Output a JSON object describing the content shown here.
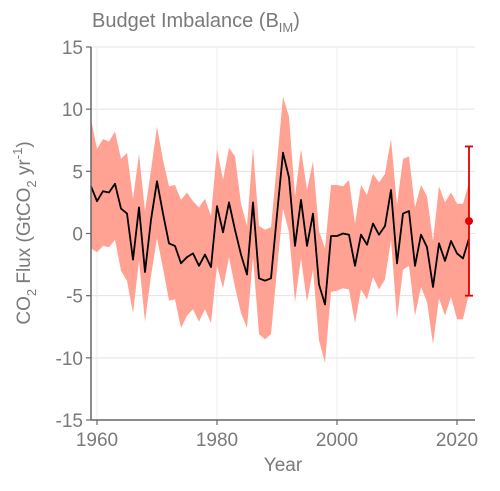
{
  "chart_data": {
    "type": "line",
    "title": "Budget Imbalance (B",
    "title_subscript": "IM",
    "title_close": ")",
    "ylabel_parts": [
      "CO",
      "2",
      " Flux (GtCO",
      "2",
      " yr",
      "-1",
      ")"
    ],
    "xlabel": "Year",
    "xlim": [
      1959,
      2023
    ],
    "ylim": [
      -15,
      15
    ],
    "xticks": [
      1960,
      1980,
      2000,
      2020
    ],
    "yticks": [
      15,
      10,
      5,
      0,
      -5,
      -10,
      -15
    ],
    "grid": true,
    "x": [
      1959,
      1960,
      1961,
      1962,
      1963,
      1964,
      1965,
      1966,
      1967,
      1968,
      1969,
      1970,
      1971,
      1972,
      1973,
      1974,
      1975,
      1976,
      1977,
      1978,
      1979,
      1980,
      1981,
      1982,
      1983,
      1984,
      1985,
      1986,
      1987,
      1988,
      1989,
      1990,
      1991,
      1992,
      1993,
      1994,
      1995,
      1996,
      1997,
      1998,
      1999,
      2000,
      2001,
      2002,
      2003,
      2004,
      2005,
      2006,
      2007,
      2008,
      2009,
      2010,
      2011,
      2012,
      2013,
      2014,
      2015,
      2016,
      2017,
      2018,
      2019,
      2020,
      2021,
      2022
    ],
    "series": [
      {
        "name": "Budget imbalance",
        "color": "#000000",
        "values": [
          3.8,
          2.6,
          3.4,
          3.3,
          4.0,
          2.0,
          1.6,
          -2.1,
          2.1,
          -3.1,
          1.1,
          4.2,
          1.6,
          -0.8,
          -1.0,
          -2.4,
          -1.9,
          -1.6,
          -2.6,
          -1.7,
          -2.7,
          2.2,
          0.1,
          2.5,
          0.3,
          -1.7,
          -3.3,
          2.5,
          -3.6,
          -3.8,
          -3.6,
          1.5,
          6.5,
          4.5,
          -1.0,
          2.7,
          -1.0,
          1.6,
          -4.1,
          -5.7,
          -0.2,
          -0.2,
          0.0,
          -0.1,
          -2.6,
          -0.1,
          -0.9,
          0.8,
          -0.1,
          0.6,
          3.5,
          -2.4,
          1.6,
          1.8,
          -2.6,
          -0.1,
          -1.1,
          -4.3,
          -0.8,
          -2.2,
          -0.6,
          -1.6,
          -2.0,
          -0.4
        ]
      },
      {
        "name": "Uncertainty band upper",
        "color": "#ffa193",
        "values": [
          9.2,
          6.8,
          7.6,
          7.4,
          8.2,
          6.0,
          6.5,
          2.8,
          6.4,
          1.8,
          5.1,
          8.6,
          5.9,
          3.8,
          3.9,
          2.7,
          3.3,
          2.6,
          2.1,
          2.8,
          1.4,
          6.8,
          4.3,
          6.9,
          6.2,
          2.4,
          0.6,
          6.9,
          0.6,
          0.3,
          0.5,
          5.7,
          11.0,
          9.4,
          3.0,
          6.8,
          3.5,
          5.8,
          0.2,
          -1.2,
          3.9,
          3.9,
          3.8,
          4.3,
          0.8,
          3.9,
          3.1,
          4.8,
          4.1,
          4.8,
          7.6,
          2.3,
          6.0,
          6.2,
          2.1,
          3.9,
          3.0,
          -0.6,
          3.8,
          2.5,
          3.3,
          2.4,
          2.4,
          4.1
        ]
      },
      {
        "name": "Uncertainty band lower",
        "color": "#ffa193",
        "values": [
          -1.2,
          -1.5,
          -1.0,
          -1.1,
          -0.5,
          -3.0,
          -3.8,
          -6.4,
          -2.2,
          -7.1,
          -3.4,
          -0.4,
          -2.8,
          -5.4,
          -5.3,
          -7.6,
          -6.6,
          -6.1,
          -7.1,
          -6.1,
          -7.2,
          -2.6,
          -4.4,
          -1.9,
          -4.3,
          -6.4,
          -7.6,
          -1.9,
          -8.1,
          -8.5,
          -8.1,
          -2.9,
          2.0,
          0.1,
          -5.5,
          -2.0,
          -5.5,
          -2.9,
          -8.6,
          -10.4,
          -4.7,
          -4.6,
          -4.4,
          -4.5,
          -7.2,
          -4.5,
          -5.3,
          -3.5,
          -4.5,
          -3.7,
          -0.5,
          -6.9,
          -2.9,
          -2.6,
          -6.6,
          -4.3,
          -5.5,
          -8.9,
          -5.2,
          -6.6,
          -5.1,
          -6.9,
          -6.9,
          -4.8
        ]
      }
    ],
    "summary_point": {
      "value": 1.0,
      "upper": 7.0,
      "lower": -5.0,
      "color": "#e20000"
    }
  }
}
